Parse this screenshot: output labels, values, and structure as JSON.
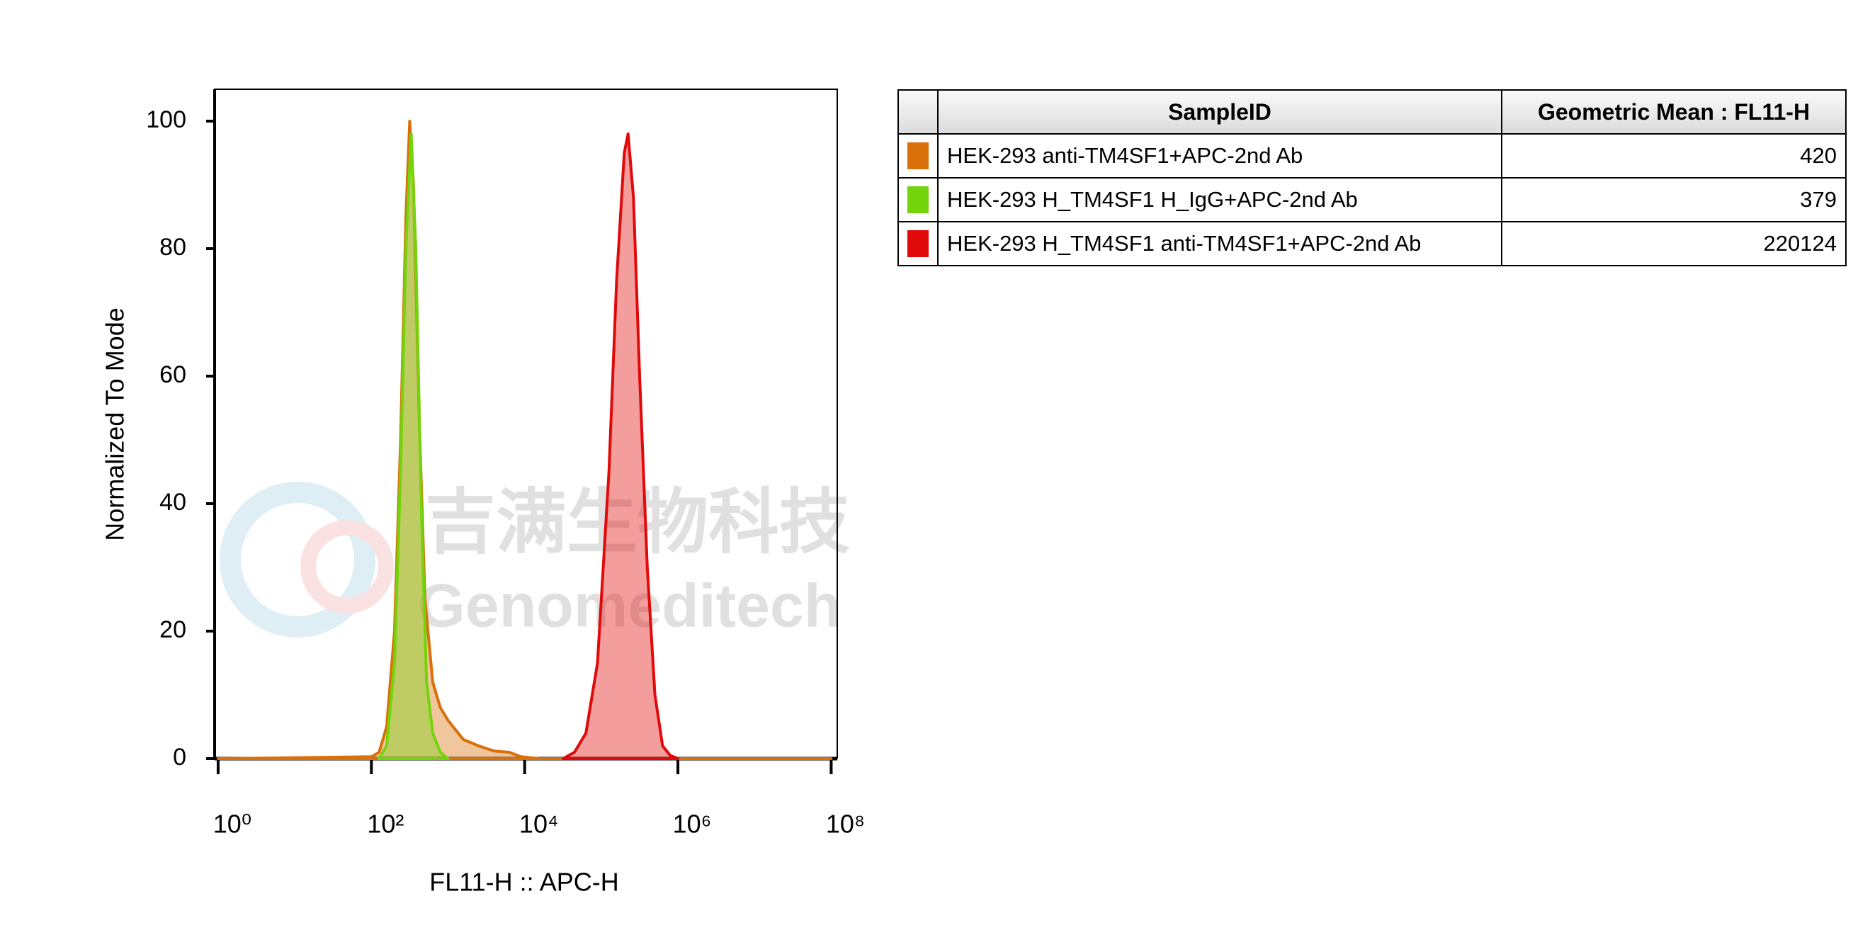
{
  "chart_data": {
    "type": "area",
    "xlabel": "FL11-H :: APC-H",
    "ylabel": "Normalized To Mode",
    "xscale": "log",
    "xlim": [
      0.9,
      120000000
    ],
    "xticks": [
      {
        "value": 1,
        "label": "10⁰"
      },
      {
        "value": 100,
        "label": "10²"
      },
      {
        "value": 10000,
        "label": "10⁴"
      },
      {
        "value": 1000000,
        "label": "10⁶"
      },
      {
        "value": 100000000,
        "label": "10⁸"
      }
    ],
    "ylim": [
      0,
      105
    ],
    "yticks": [
      0,
      20,
      40,
      60,
      80,
      100
    ],
    "legend_columns": [
      "SampleID",
      "Geometric Mean : FL11-H"
    ],
    "watermark": [
      "吉满生物科技",
      "Genomeditech"
    ],
    "series": [
      {
        "name": "HEK-293 anti-TM4SF1+APC-2nd Ab",
        "color": "#d9700a",
        "geometric_mean": 420,
        "x": [
          1,
          100,
          126,
          158,
          200,
          240,
          282,
          316,
          355,
          417,
          501,
          631,
          794,
          1000,
          1585,
          2512,
          3981,
          6310,
          8913,
          15849,
          100000000
        ],
        "values": [
          0,
          0.3,
          1,
          5,
          20,
          50,
          85,
          100,
          90,
          55,
          25,
          12,
          8,
          6,
          3,
          2,
          1.2,
          1,
          0.3,
          0,
          0
        ]
      },
      {
        "name": "HEK-293 H_TM4SF1 H_IgG+APC-2nd Ab",
        "color": "#74d40c",
        "geometric_mean": 379,
        "x": [
          126,
          158,
          200,
          240,
          282,
          331,
          380,
          447,
          525,
          631,
          794,
          1000
        ],
        "values": [
          0,
          2,
          15,
          45,
          80,
          98,
          80,
          40,
          12,
          4,
          1,
          0
        ]
      },
      {
        "name": "HEK-293 H_TM4SF1 anti-TM4SF1+APC-2nd Ab",
        "color": "#e00a0a",
        "geometric_mean": 220124,
        "x": [
          31623,
          44668,
          63096,
          89125,
          125893,
          158489,
          199526,
          223872,
          263027,
          316228,
          398107,
          501187,
          630957,
          794328,
          1000000
        ],
        "values": [
          0,
          1,
          4,
          15,
          45,
          75,
          95,
          98,
          88,
          60,
          30,
          10,
          2,
          0.5,
          0
        ]
      }
    ]
  }
}
